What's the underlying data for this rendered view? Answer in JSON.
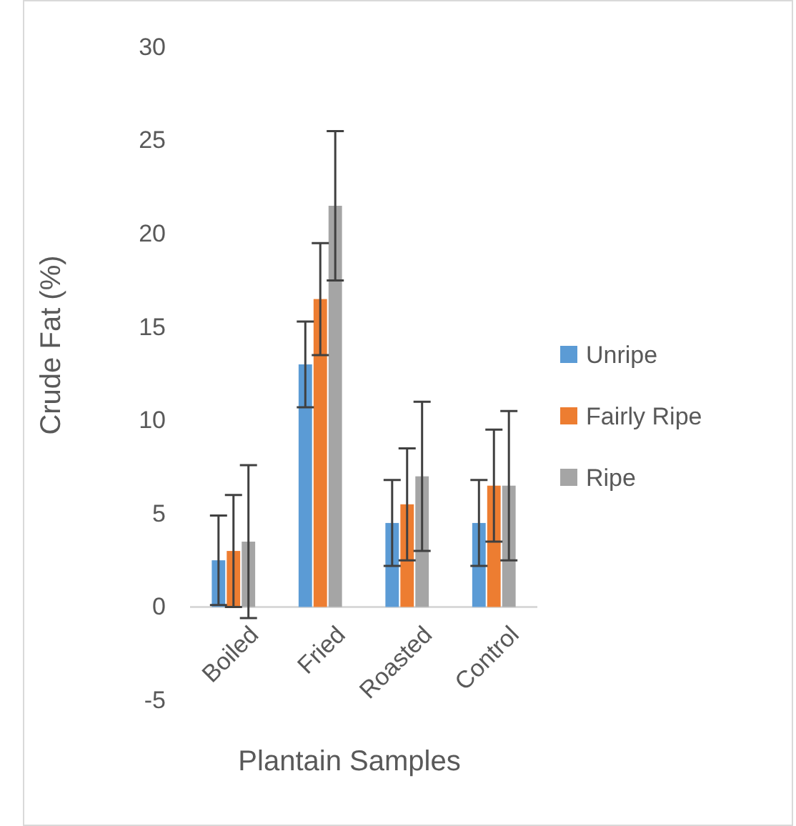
{
  "chart_data": {
    "type": "bar",
    "xlabel": "Plantain Samples",
    "ylabel": "Crude Fat (%)",
    "categories": [
      "Boiled",
      "Fried",
      "Roasted",
      "Control"
    ],
    "series": [
      {
        "name": "Unripe",
        "color": "#5b9bd5",
        "values": [
          2.5,
          13,
          4.5,
          4.5
        ],
        "errors": [
          2.4,
          2.3,
          2.3,
          2.3
        ]
      },
      {
        "name": "Fairly Ripe",
        "color": "#ed7d31",
        "values": [
          3,
          16.5,
          5.5,
          6.5
        ],
        "errors": [
          3,
          3,
          3,
          3
        ]
      },
      {
        "name": "Ripe",
        "color": "#a5a5a5",
        "values": [
          3.5,
          21.5,
          7,
          6.5
        ],
        "errors": [
          4.1,
          4,
          4,
          4
        ]
      }
    ],
    "ylim": [
      -5,
      30
    ],
    "yticks": [
      -5,
      0,
      5,
      10,
      15,
      20,
      25,
      30
    ],
    "grid": false,
    "legend": "right"
  }
}
